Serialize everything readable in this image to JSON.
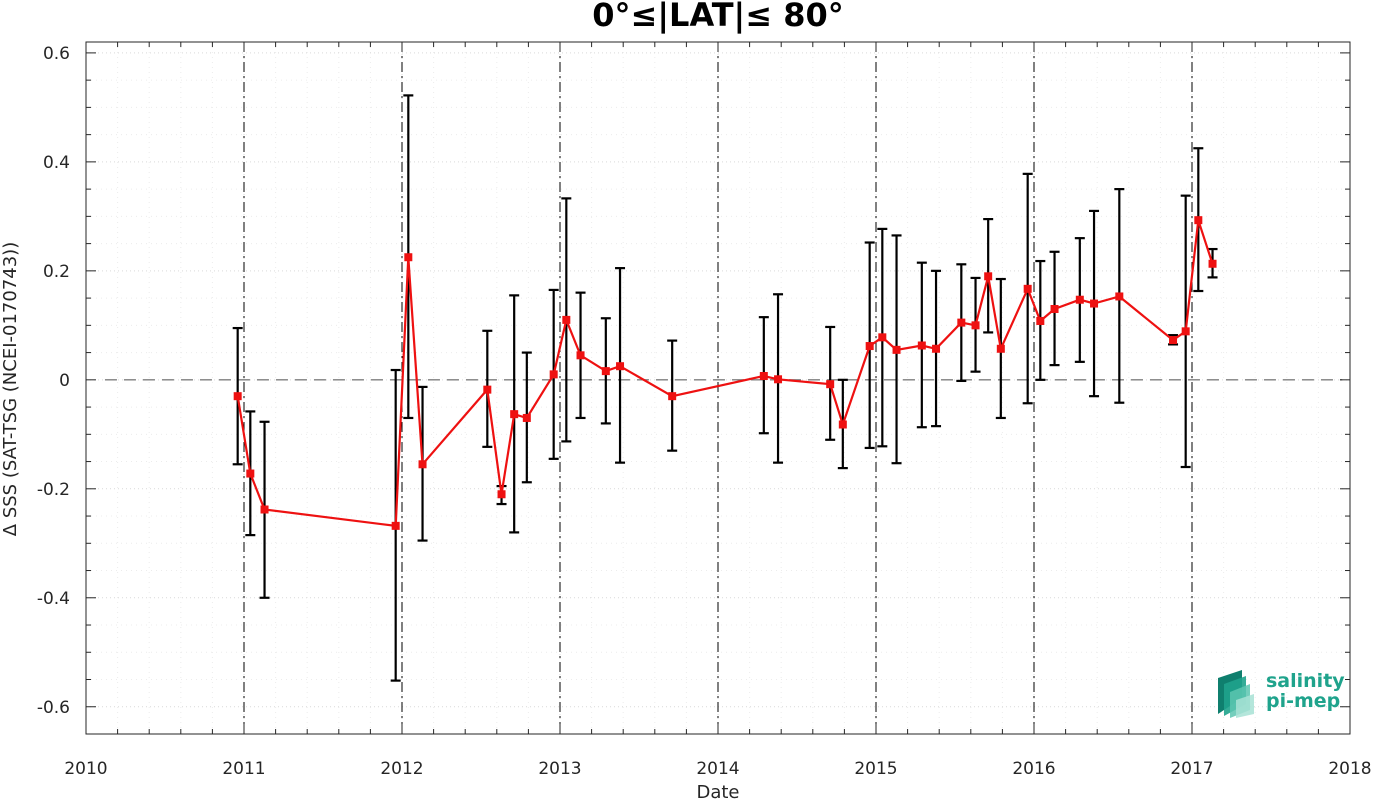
{
  "chart_data": {
    "type": "line",
    "title": "0°≤|LAT|≤ 80°",
    "xlabel": "Date",
    "ylabel": "Δ SSS (SAT-TSG (NCEI-0170743))",
    "xlim": [
      2010,
      2018
    ],
    "ylim": [
      -0.65,
      0.62
    ],
    "x_ticks": [
      "2010",
      "2011",
      "2012",
      "2013",
      "2014",
      "2015",
      "2016",
      "2017",
      "2018"
    ],
    "y_ticks": [
      "-0.6",
      "-0.4",
      "-0.2",
      "0",
      "0.2",
      "0.4",
      "0.6"
    ],
    "year_boundaries": [
      2011,
      2012,
      2013,
      2014,
      2015,
      2016,
      2017
    ],
    "reference_line": 0,
    "grid": true,
    "series": [
      {
        "color": "#ee1111",
        "errorbar_color": "#000000",
        "points": [
          {
            "x": 2010.96,
            "y": -0.03,
            "lo": -0.155,
            "hi": 0.095
          },
          {
            "x": 2011.04,
            "y": -0.172,
            "lo": -0.285,
            "hi": -0.058
          },
          {
            "x": 2011.13,
            "y": -0.238,
            "lo": -0.4,
            "hi": -0.077
          },
          {
            "x": 2011.96,
            "y": -0.268,
            "lo": -0.552,
            "hi": 0.018
          },
          {
            "x": 2012.04,
            "y": 0.225,
            "lo": -0.07,
            "hi": 0.522
          },
          {
            "x": 2012.13,
            "y": -0.155,
            "lo": -0.295,
            "hi": -0.013
          },
          {
            "x": 2012.54,
            "y": -0.018,
            "lo": -0.123,
            "hi": 0.09
          },
          {
            "x": 2012.63,
            "y": -0.21,
            "lo": -0.228,
            "hi": -0.195
          },
          {
            "x": 2012.71,
            "y": -0.063,
            "lo": -0.28,
            "hi": 0.155
          },
          {
            "x": 2012.79,
            "y": -0.07,
            "lo": -0.188,
            "hi": 0.05
          },
          {
            "x": 2012.96,
            "y": 0.01,
            "lo": -0.145,
            "hi": 0.165
          },
          {
            "x": 2013.04,
            "y": 0.11,
            "lo": -0.113,
            "hi": 0.333
          },
          {
            "x": 2013.13,
            "y": 0.045,
            "lo": -0.07,
            "hi": 0.16
          },
          {
            "x": 2013.29,
            "y": 0.016,
            "lo": -0.08,
            "hi": 0.113
          },
          {
            "x": 2013.38,
            "y": 0.025,
            "lo": -0.152,
            "hi": 0.205
          },
          {
            "x": 2013.71,
            "y": -0.03,
            "lo": -0.13,
            "hi": 0.072
          },
          {
            "x": 2014.29,
            "y": 0.007,
            "lo": -0.098,
            "hi": 0.115
          },
          {
            "x": 2014.38,
            "y": 0.001,
            "lo": -0.152,
            "hi": 0.157
          },
          {
            "x": 2014.71,
            "y": -0.008,
            "lo": -0.11,
            "hi": 0.097
          },
          {
            "x": 2014.79,
            "y": -0.082,
            "lo": -0.162,
            "hi": 0.0
          },
          {
            "x": 2014.96,
            "y": 0.062,
            "lo": -0.125,
            "hi": 0.252
          },
          {
            "x": 2015.04,
            "y": 0.078,
            "lo": -0.122,
            "hi": 0.277
          },
          {
            "x": 2015.13,
            "y": 0.055,
            "lo": -0.153,
            "hi": 0.265
          },
          {
            "x": 2015.29,
            "y": 0.063,
            "lo": -0.087,
            "hi": 0.215
          },
          {
            "x": 2015.38,
            "y": 0.057,
            "lo": -0.085,
            "hi": 0.2
          },
          {
            "x": 2015.54,
            "y": 0.105,
            "lo": -0.002,
            "hi": 0.212
          },
          {
            "x": 2015.63,
            "y": 0.1,
            "lo": 0.015,
            "hi": 0.187
          },
          {
            "x": 2015.71,
            "y": 0.19,
            "lo": 0.087,
            "hi": 0.295
          },
          {
            "x": 2015.79,
            "y": 0.057,
            "lo": -0.07,
            "hi": 0.185
          },
          {
            "x": 2015.96,
            "y": 0.167,
            "lo": -0.043,
            "hi": 0.378
          },
          {
            "x": 2016.04,
            "y": 0.108,
            "lo": 0.0,
            "hi": 0.218
          },
          {
            "x": 2016.13,
            "y": 0.13,
            "lo": 0.027,
            "hi": 0.235
          },
          {
            "x": 2016.29,
            "y": 0.147,
            "lo": 0.033,
            "hi": 0.26
          },
          {
            "x": 2016.38,
            "y": 0.14,
            "lo": -0.03,
            "hi": 0.31
          },
          {
            "x": 2016.54,
            "y": 0.153,
            "lo": -0.042,
            "hi": 0.35
          },
          {
            "x": 2016.88,
            "y": 0.073,
            "lo": 0.065,
            "hi": 0.082
          },
          {
            "x": 2016.96,
            "y": 0.089,
            "lo": -0.16,
            "hi": 0.338
          },
          {
            "x": 2017.04,
            "y": 0.293,
            "lo": 0.163,
            "hi": 0.425
          },
          {
            "x": 2017.13,
            "y": 0.213,
            "lo": 0.188,
            "hi": 0.24
          }
        ]
      }
    ]
  },
  "logo": {
    "line1": "salinity",
    "line2": "pi-mep",
    "color": "#1fa38c"
  }
}
